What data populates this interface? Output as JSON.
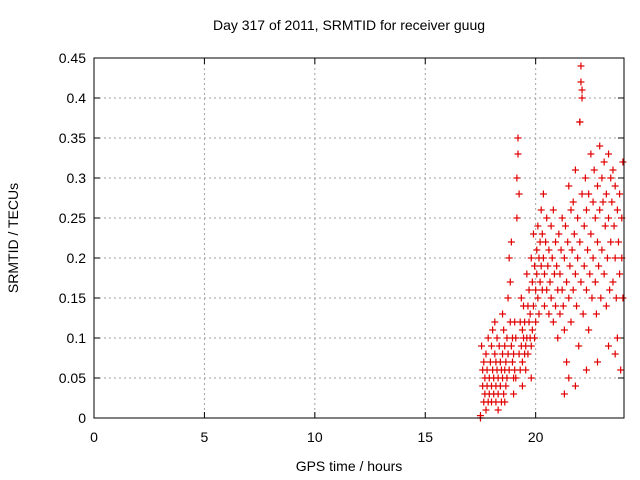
{
  "chart_data": {
    "type": "scatter",
    "title": "Day 317 of 2011, SRMTID for receiver guug",
    "xlabel": "GPS time / hours",
    "ylabel": "SRMTID / TECUs",
    "xlim": [
      0,
      24
    ],
    "ylim": [
      0,
      0.45
    ],
    "xticks": [
      0,
      5,
      10,
      15,
      20
    ],
    "xtick_labels": [
      "0",
      "5",
      "10",
      "15",
      "20"
    ],
    "yticks": [
      0,
      0.05,
      0.1,
      0.15,
      0.2,
      0.25,
      0.3,
      0.35,
      0.4,
      0.45
    ],
    "ytick_labels": [
      "0",
      "0.05",
      "0.1",
      "0.15",
      "0.2",
      "0.25",
      "0.3",
      "0.35",
      "0.4",
      "0.45"
    ],
    "grid": true,
    "marker": "plus",
    "color": "#e00000",
    "series": [
      {
        "values": [
          [
            17.5,
            0.0
          ],
          [
            17.5,
            0.003
          ],
          [
            17.55,
            0.09
          ],
          [
            17.6,
            0.04
          ],
          [
            17.6,
            0.06
          ],
          [
            17.65,
            0.02
          ],
          [
            17.65,
            0.07
          ],
          [
            17.7,
            0.03
          ],
          [
            17.7,
            0.05
          ],
          [
            17.75,
            0.01
          ],
          [
            17.75,
            0.08
          ],
          [
            17.8,
            0.04
          ],
          [
            17.8,
            0.06
          ],
          [
            17.85,
            0.02
          ],
          [
            17.85,
            0.1
          ],
          [
            17.9,
            0.03
          ],
          [
            17.9,
            0.05
          ],
          [
            17.95,
            0.07
          ],
          [
            18.0,
            0.02
          ],
          [
            18.0,
            0.04
          ],
          [
            18.0,
            0.09
          ],
          [
            18.05,
            0.06
          ],
          [
            18.05,
            0.11
          ],
          [
            18.1,
            0.03
          ],
          [
            18.1,
            0.05
          ],
          [
            18.15,
            0.08
          ],
          [
            18.15,
            0.12
          ],
          [
            18.2,
            0.02
          ],
          [
            18.2,
            0.04
          ],
          [
            18.2,
            0.07
          ],
          [
            18.25,
            0.06
          ],
          [
            18.25,
            0.1
          ],
          [
            18.3,
            0.03
          ],
          [
            18.3,
            0.05
          ],
          [
            18.35,
            0.09
          ],
          [
            18.4,
            0.04
          ],
          [
            18.4,
            0.07
          ],
          [
            18.45,
            0.02
          ],
          [
            18.45,
            0.06
          ],
          [
            18.5,
            0.05
          ],
          [
            18.5,
            0.08
          ],
          [
            18.5,
            0.13
          ],
          [
            18.55,
            0.03
          ],
          [
            18.55,
            0.11
          ],
          [
            18.6,
            0.06
          ],
          [
            18.6,
            0.09
          ],
          [
            18.65,
            0.04
          ],
          [
            18.65,
            0.07
          ],
          [
            18.7,
            0.1
          ],
          [
            18.7,
            0.05
          ],
          [
            18.75,
            0.15
          ],
          [
            18.75,
            0.08
          ],
          [
            18.8,
            0.06
          ],
          [
            18.8,
            0.2
          ],
          [
            18.85,
            0.12
          ],
          [
            18.85,
            0.17
          ],
          [
            18.9,
            0.09
          ],
          [
            18.9,
            0.22
          ],
          [
            18.95,
            0.07
          ],
          [
            18.95,
            0.1
          ],
          [
            19.0,
            0.05
          ],
          [
            19.0,
            0.08
          ],
          [
            19.05,
            0.12
          ],
          [
            19.05,
            0.06
          ],
          [
            19.1,
            0.1
          ],
          [
            19.1,
            0.05
          ],
          [
            19.15,
            0.25
          ],
          [
            19.15,
            0.3
          ],
          [
            19.2,
            0.35
          ],
          [
            19.2,
            0.33
          ],
          [
            19.25,
            0.28
          ],
          [
            19.25,
            0.08
          ],
          [
            19.3,
            0.06
          ],
          [
            19.3,
            0.12
          ],
          [
            19.35,
            0.09
          ],
          [
            19.35,
            0.15
          ],
          [
            19.4,
            0.07
          ],
          [
            19.4,
            0.11
          ],
          [
            19.45,
            0.1
          ],
          [
            19.45,
            0.14
          ],
          [
            19.5,
            0.08
          ],
          [
            19.5,
            0.12
          ],
          [
            19.55,
            0.09
          ],
          [
            19.55,
            0.06
          ],
          [
            19.6,
            0.18
          ],
          [
            19.6,
            0.1
          ],
          [
            19.65,
            0.14
          ],
          [
            19.65,
            0.08
          ],
          [
            19.7,
            0.12
          ],
          [
            19.7,
            0.16
          ],
          [
            19.75,
            0.1
          ],
          [
            19.75,
            0.13
          ],
          [
            19.8,
            0.2
          ],
          [
            19.8,
            0.09
          ],
          [
            19.85,
            0.17
          ],
          [
            19.85,
            0.11
          ],
          [
            19.9,
            0.23
          ],
          [
            19.9,
            0.14
          ],
          [
            19.95,
            0.1
          ],
          [
            19.95,
            0.19
          ],
          [
            20.0,
            0.16
          ],
          [
            20.0,
            0.12
          ],
          [
            20.05,
            0.21
          ],
          [
            20.05,
            0.18
          ],
          [
            20.1,
            0.24
          ],
          [
            20.1,
            0.15
          ],
          [
            20.15,
            0.2
          ],
          [
            20.15,
            0.13
          ],
          [
            20.2,
            0.22
          ],
          [
            20.2,
            0.17
          ],
          [
            20.25,
            0.19
          ],
          [
            20.25,
            0.26
          ],
          [
            20.3,
            0.23
          ],
          [
            20.3,
            0.16
          ],
          [
            20.35,
            0.28
          ],
          [
            20.35,
            0.2
          ],
          [
            20.4,
            0.14
          ],
          [
            20.4,
            0.18
          ],
          [
            20.45,
            0.22
          ],
          [
            20.5,
            0.16
          ],
          [
            20.5,
            0.25
          ],
          [
            20.55,
            0.19
          ],
          [
            20.6,
            0.13
          ],
          [
            20.6,
            0.21
          ],
          [
            20.65,
            0.17
          ],
          [
            20.7,
            0.24
          ],
          [
            20.7,
            0.15
          ],
          [
            20.75,
            0.2
          ],
          [
            20.8,
            0.26
          ],
          [
            20.8,
            0.12
          ],
          [
            20.85,
            0.18
          ],
          [
            20.9,
            0.22
          ],
          [
            20.9,
            0.14
          ],
          [
            20.95,
            0.19
          ],
          [
            21.0,
            0.16
          ],
          [
            21.0,
            0.1
          ],
          [
            21.05,
            0.23
          ],
          [
            21.1,
            0.18
          ],
          [
            21.1,
            0.13
          ],
          [
            21.15,
            0.21
          ],
          [
            21.2,
            0.16
          ],
          [
            21.2,
            0.25
          ],
          [
            21.25,
            0.14
          ],
          [
            21.3,
            0.2
          ],
          [
            21.3,
            0.11
          ],
          [
            21.35,
            0.24
          ],
          [
            21.4,
            0.17
          ],
          [
            21.4,
            0.07
          ],
          [
            21.45,
            0.22
          ],
          [
            21.5,
            0.15
          ],
          [
            21.5,
            0.29
          ],
          [
            21.55,
            0.19
          ],
          [
            21.6,
            0.26
          ],
          [
            21.6,
            0.12
          ],
          [
            21.65,
            0.21
          ],
          [
            21.7,
            0.16
          ],
          [
            21.7,
            0.27
          ],
          [
            21.75,
            0.23
          ],
          [
            21.8,
            0.18
          ],
          [
            21.8,
            0.31
          ],
          [
            21.85,
            0.14
          ],
          [
            21.9,
            0.25
          ],
          [
            21.9,
            0.2
          ],
          [
            21.95,
            0.09
          ],
          [
            22.0,
            0.37
          ],
          [
            22.0,
            0.37
          ],
          [
            22.05,
            0.44
          ],
          [
            22.05,
            0.42
          ],
          [
            22.1,
            0.41
          ],
          [
            22.1,
            0.4
          ],
          [
            22.0,
            0.22
          ],
          [
            22.05,
            0.17
          ],
          [
            22.1,
            0.28
          ],
          [
            22.15,
            0.13
          ],
          [
            22.2,
            0.24
          ],
          [
            22.2,
            0.19
          ],
          [
            22.25,
            0.3
          ],
          [
            22.3,
            0.16
          ],
          [
            22.3,
            0.26
          ],
          [
            22.35,
            0.21
          ],
          [
            22.4,
            0.11
          ],
          [
            22.4,
            0.28
          ],
          [
            22.45,
            0.18
          ],
          [
            22.5,
            0.33
          ],
          [
            22.5,
            0.23
          ],
          [
            22.55,
            0.15
          ],
          [
            22.6,
            0.27
          ],
          [
            22.6,
            0.2
          ],
          [
            22.65,
            0.31
          ],
          [
            22.7,
            0.17
          ],
          [
            22.7,
            0.25
          ],
          [
            22.75,
            0.13
          ],
          [
            22.8,
            0.29
          ],
          [
            22.8,
            0.22
          ],
          [
            22.85,
            0.19
          ],
          [
            22.9,
            0.34
          ],
          [
            22.9,
            0.26
          ],
          [
            22.95,
            0.15
          ],
          [
            23.0,
            0.3
          ],
          [
            23.0,
            0.21
          ],
          [
            23.05,
            0.27
          ],
          [
            23.1,
            0.18
          ],
          [
            23.1,
            0.32
          ],
          [
            23.15,
            0.24
          ],
          [
            23.2,
            0.14
          ],
          [
            23.2,
            0.28
          ],
          [
            23.25,
            0.2
          ],
          [
            23.3,
            0.33
          ],
          [
            23.3,
            0.25
          ],
          [
            23.35,
            0.16
          ],
          [
            23.4,
            0.3
          ],
          [
            23.4,
            0.22
          ],
          [
            23.45,
            0.27
          ],
          [
            23.5,
            0.17
          ],
          [
            23.5,
            0.31
          ],
          [
            23.55,
            0.24
          ],
          [
            23.6,
            0.2
          ],
          [
            23.6,
            0.29
          ],
          [
            23.65,
            0.15
          ],
          [
            23.7,
            0.26
          ],
          [
            23.7,
            0.1
          ],
          [
            23.75,
            0.22
          ],
          [
            23.8,
            0.28
          ],
          [
            23.8,
            0.18
          ],
          [
            23.85,
            0.06
          ],
          [
            23.9,
            0.25
          ],
          [
            23.9,
            0.2
          ],
          [
            23.95,
            0.32
          ],
          [
            23.95,
            0.15
          ],
          [
            21.5,
            0.05
          ],
          [
            21.3,
            0.03
          ],
          [
            21.8,
            0.04
          ],
          [
            22.3,
            0.06
          ],
          [
            22.8,
            0.07
          ],
          [
            23.3,
            0.09
          ],
          [
            23.6,
            0.08
          ],
          [
            18.3,
            0.01
          ],
          [
            18.6,
            0.02
          ],
          [
            19.0,
            0.03
          ],
          [
            19.4,
            0.04
          ],
          [
            19.8,
            0.05
          ]
        ]
      }
    ]
  }
}
